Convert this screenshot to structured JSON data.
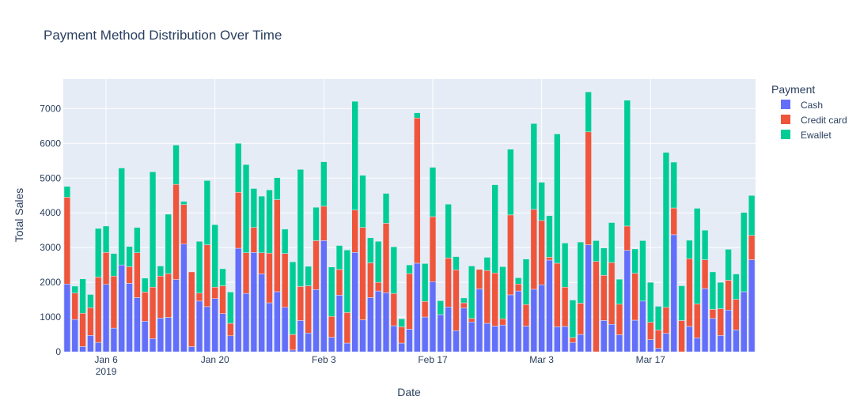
{
  "chart_data": {
    "type": "bar",
    "barmode": "stack",
    "title": "Payment Method Distribution Over Time",
    "xlabel": "Date",
    "ylabel": "Total Sales",
    "x_start": "2019-01-01",
    "x_end": "2019-03-30",
    "x_tick_labels": [
      {
        "date": "2019-01-06",
        "label": "Jan 6",
        "sublabel": "2019"
      },
      {
        "date": "2019-01-20",
        "label": "Jan 20",
        "sublabel": ""
      },
      {
        "date": "2019-02-03",
        "label": "Feb 3",
        "sublabel": ""
      },
      {
        "date": "2019-02-17",
        "label": "Feb 17",
        "sublabel": ""
      },
      {
        "date": "2019-03-03",
        "label": "Mar 3",
        "sublabel": ""
      },
      {
        "date": "2019-03-17",
        "label": "Mar 17",
        "sublabel": ""
      }
    ],
    "y_ticks": [
      0,
      1000,
      2000,
      3000,
      4000,
      5000,
      6000,
      7000
    ],
    "y_tick_labels": [
      "0",
      "1000",
      "2000",
      "3000",
      "4000",
      "5000",
      "6000",
      "7000"
    ],
    "ylim": [
      0,
      7850
    ],
    "grid": true,
    "legend_title": "Payment",
    "legend_position": "right",
    "series": [
      {
        "name": "Cash",
        "color": "#636efa",
        "values": [
          1950,
          930,
          150,
          470,
          270,
          1940,
          680,
          2500,
          1970,
          1560,
          880,
          380,
          970,
          990,
          2080,
          3100,
          150,
          1460,
          1300,
          1530,
          1100,
          460,
          2980,
          1680,
          2860,
          2240,
          1410,
          1730,
          1280,
          50,
          900,
          540,
          1790,
          3200,
          420,
          1630,
          250,
          2860,
          920,
          1560,
          1750,
          1700,
          750,
          250,
          650,
          2550,
          1000,
          2020,
          1070,
          1290,
          610,
          1260,
          860,
          1810,
          820,
          740,
          770,
          1640,
          1750,
          740,
          1800,
          1930,
          2640,
          720,
          730,
          270,
          500,
          3080,
          0,
          900,
          790,
          490,
          2920,
          910,
          1460,
          350,
          100,
          530,
          3370,
          0,
          730,
          400,
          1820,
          960,
          470,
          1200,
          630,
          1730,
          2650
        ]
      },
      {
        "name": "Credit card",
        "color": "#ef553b",
        "values": [
          2500,
          760,
          960,
          800,
          1880,
          920,
          1500,
          0,
          480,
          1290,
          840,
          1480,
          1210,
          1260,
          2740,
          1140,
          2150,
          230,
          1780,
          330,
          800,
          360,
          1610,
          1170,
          720,
          610,
          1430,
          2650,
          1550,
          450,
          980,
          1360,
          1410,
          990,
          600,
          740,
          880,
          1220,
          2660,
          1000,
          250,
          2000,
          930,
          470,
          1600,
          4180,
          450,
          1870,
          0,
          1410,
          1750,
          150,
          100,
          560,
          1520,
          1530,
          180,
          2300,
          200,
          620,
          2300,
          1850,
          80,
          1830,
          1130,
          140,
          900,
          3250,
          2600,
          1300,
          1780,
          880,
          700,
          1350,
          0,
          500,
          530,
          750,
          770,
          900,
          1950,
          980,
          830,
          260,
          770,
          860,
          880,
          0,
          700
        ]
      },
      {
        "name": "Ewallet",
        "color": "#00cc96",
        "values": [
          310,
          200,
          990,
          380,
          1400,
          760,
          650,
          2790,
          580,
          730,
          400,
          3320,
          290,
          1710,
          1130,
          90,
          0,
          1490,
          1850,
          1800,
          490,
          900,
          1410,
          2540,
          1120,
          1630,
          1820,
          630,
          700,
          2090,
          3370,
          560,
          960,
          1280,
          1420,
          690,
          1800,
          3130,
          1500,
          720,
          1180,
          860,
          1340,
          230,
          250,
          150,
          1090,
          1420,
          400,
          1550,
          380,
          140,
          1510,
          0,
          380,
          2540,
          1500,
          1890,
          180,
          1310,
          2470,
          1100,
          1200,
          3720,
          1270,
          1080,
          1760,
          1150,
          600,
          790,
          1150,
          720,
          3620,
          700,
          1740,
          1150,
          680,
          4460,
          1320,
          1000,
          530,
          2750,
          850,
          1080,
          760,
          890,
          730,
          2280,
          1150
        ]
      }
    ]
  }
}
